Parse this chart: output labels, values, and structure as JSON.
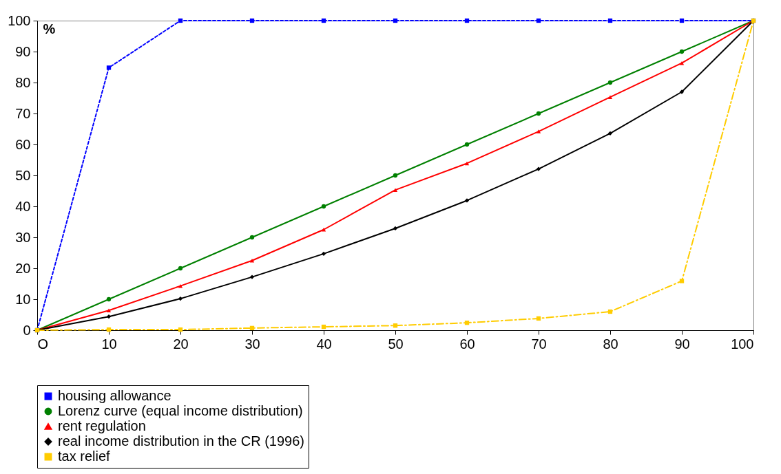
{
  "chart_data": {
    "type": "line",
    "ylabel": "%",
    "x": [
      0,
      10,
      20,
      30,
      40,
      50,
      60,
      70,
      80,
      90,
      100
    ],
    "xlim": [
      0,
      100
    ],
    "xticks": [
      {
        "value": 0,
        "label": "O"
      },
      10,
      20,
      30,
      40,
      50,
      60,
      70,
      80,
      90,
      100
    ],
    "ylim": [
      0,
      100
    ],
    "yticks": [
      0,
      10,
      20,
      30,
      40,
      50,
      60,
      70,
      80,
      90,
      100
    ],
    "grid": false,
    "legend": "bottom",
    "series": [
      {
        "name": "housing allowance",
        "color": "#0000ff",
        "marker": "square",
        "line_style": "dashed",
        "values": [
          0,
          84.8,
          100,
          100,
          100,
          100,
          100,
          100,
          100,
          100,
          100
        ]
      },
      {
        "name": "Lorenz curve (equal income distribution)",
        "color": "#008000",
        "marker": "circle",
        "line_style": "solid",
        "values": [
          0,
          10,
          20,
          30,
          40,
          50,
          60,
          70,
          80,
          90,
          100
        ]
      },
      {
        "name": "rent regulation",
        "color": "#ff0000",
        "marker": "triangle",
        "line_style": "solid",
        "values": [
          0,
          6.4,
          14.3,
          22.5,
          32.5,
          45.3,
          53.9,
          64.2,
          75.3,
          86.3,
          100
        ]
      },
      {
        "name": "real income distribution in the CR (1996)",
        "color": "#000000",
        "marker": "diamond",
        "line_style": "solid",
        "values": [
          0,
          4.4,
          10.2,
          17.2,
          24.7,
          32.9,
          41.9,
          52.1,
          63.6,
          77,
          100
        ]
      },
      {
        "name": "tax relief",
        "color": "#ffcc00",
        "marker": "square",
        "line_style": "dashdot",
        "values": [
          0,
          0.2,
          0.2,
          0.7,
          1.1,
          1.5,
          2.4,
          3.8,
          6,
          15.9,
          100
        ]
      }
    ]
  }
}
